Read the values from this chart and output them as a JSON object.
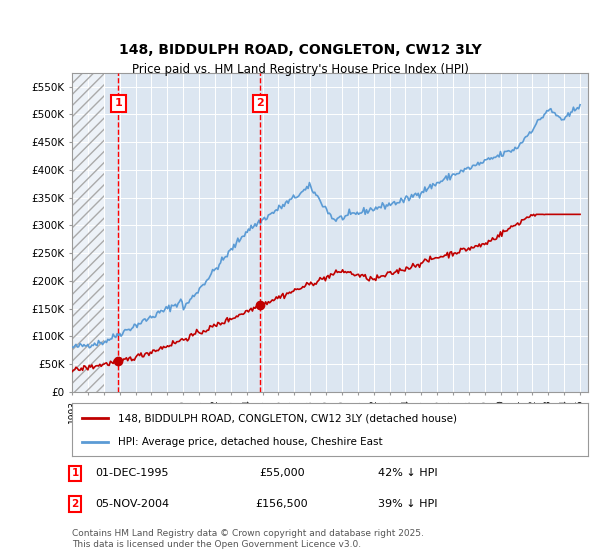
{
  "title": "148, BIDDULPH ROAD, CONGLETON, CW12 3LY",
  "subtitle": "Price paid vs. HM Land Registry's House Price Index (HPI)",
  "ylabel_ticks": [
    0,
    50000,
    100000,
    150000,
    200000,
    250000,
    300000,
    350000,
    400000,
    450000,
    500000,
    550000
  ],
  "ylabel_labels": [
    "£0",
    "£50K",
    "£100K",
    "£150K",
    "£200K",
    "£250K",
    "£300K",
    "£350K",
    "£400K",
    "£450K",
    "£500K",
    "£550K"
  ],
  "xlim_start": 1993.0,
  "xlim_end": 2025.5,
  "ylim_min": 0,
  "ylim_max": 575000,
  "purchase1_year": 1995.92,
  "purchase1_price": 55000,
  "purchase2_year": 2004.84,
  "purchase2_price": 156500,
  "hpi_color": "#5b9bd5",
  "price_color": "#c00000",
  "background_color": "#dce6f1",
  "hatch_color": "#c0c0c0",
  "legend_label1": "148, BIDDULPH ROAD, CONGLETON, CW12 3LY (detached house)",
  "legend_label2": "HPI: Average price, detached house, Cheshire East",
  "annotation1_label": "1",
  "annotation1_date": "01-DEC-1995",
  "annotation1_price": "£55,000",
  "annotation1_hpi": "42% ↓ HPI",
  "annotation2_label": "2",
  "annotation2_date": "05-NOV-2004",
  "annotation2_price": "£156,500",
  "annotation2_hpi": "39% ↓ HPI",
  "footnote": "Contains HM Land Registry data © Crown copyright and database right 2025.\nThis data is licensed under the Open Government Licence v3.0."
}
